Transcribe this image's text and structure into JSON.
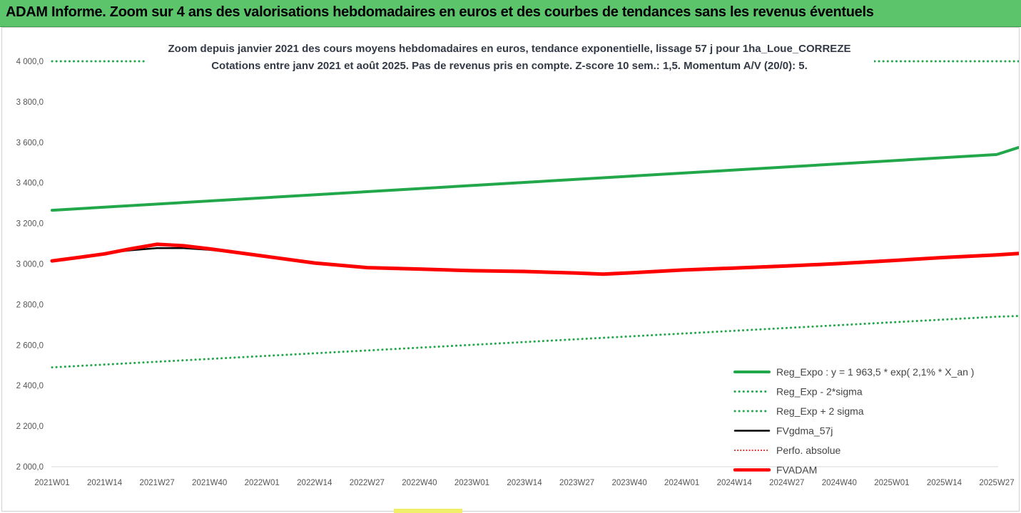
{
  "header": {
    "title": "ADAM Informe. Zoom sur 4 ans des valorisations hebdomadaires en euros et des courbes de tendances sans les revenus éventuels"
  },
  "chart_data": {
    "type": "line",
    "title_line1": "Zoom depuis janvier 2021 des cours moyens hebdomadaires en euros, tendance exponentielle, lissage 57 j pour 1ha_Loue_CORREZE",
    "title_line2": "Cotations entre janv 2021 et août 2025.  Pas de revenus pris en compte. Z-score 10 sem.: 1,5. Momentum A/V (20/0): 5.",
    "x_tick_labels": [
      "2021W01",
      "2021W14",
      "2021W27",
      "2021W40",
      "2022W01",
      "2022W14",
      "2022W27",
      "2022W40",
      "2023W01",
      "2023W14",
      "2023W27",
      "2023W40",
      "2024W01",
      "2024W14",
      "2024W27",
      "2024W40",
      "2025W01",
      "2025W14",
      "2025W27"
    ],
    "y_tick_labels": [
      "2 000,0",
      "2 200,0",
      "2 400,0",
      "2 600,0",
      "2 800,0",
      "3 000,0",
      "3 200,0",
      "3 400,0",
      "3 600,0",
      "3 800,0",
      "4 000,0"
    ],
    "ylim": [
      2000,
      4000
    ],
    "grid": false,
    "legend_position": "bottom-right",
    "series": [
      {
        "name": "Reg_Expo : y = 1 963,5 * exp( 2,1% *  X_an )",
        "color": "#22a84a",
        "style": "solid",
        "width": 4,
        "points": [
          [
            0,
            3265
          ],
          [
            18,
            3540
          ],
          [
            18.6,
            3590
          ]
        ]
      },
      {
        "name": "Reg_Exp - 2*sigma",
        "color": "#22a84a",
        "style": "dotted",
        "width": 3,
        "points": [
          [
            0,
            2490
          ],
          [
            18,
            2740
          ],
          [
            18.6,
            2745
          ]
        ]
      },
      {
        "name": "Reg_Exp + 2 sigma",
        "color": "#22a84a",
        "style": "dotted",
        "width": 3,
        "points": [
          [
            0,
            4000
          ],
          [
            18.6,
            4000
          ]
        ]
      },
      {
        "name": "FVgdma_57j",
        "color": "#000000",
        "style": "solid",
        "width": 2.5,
        "points": [
          [
            0,
            3015
          ],
          [
            1,
            3053
          ],
          [
            1.5,
            3068
          ],
          [
            2,
            3078
          ],
          [
            2.5,
            3078
          ],
          [
            3,
            3070
          ],
          [
            4,
            3040
          ],
          [
            5,
            3005
          ],
          [
            6,
            2982
          ],
          [
            7,
            2975
          ],
          [
            8,
            2967
          ],
          [
            9,
            2963
          ],
          [
            10,
            2955
          ],
          [
            10.5,
            2952
          ],
          [
            11,
            2958
          ],
          [
            12,
            2972
          ],
          [
            13,
            2982
          ],
          [
            14,
            2992
          ],
          [
            15,
            3005
          ],
          [
            16,
            3018
          ],
          [
            17,
            3032
          ],
          [
            18,
            3045
          ],
          [
            18.6,
            3052
          ]
        ]
      },
      {
        "name": "Perfo. absolue",
        "color": "#e01010",
        "style": "dotted",
        "width": 2,
        "points": []
      },
      {
        "name": "FVADAM",
        "color": "#ff0000",
        "style": "solid",
        "width": 5,
        "points": [
          [
            0,
            3015
          ],
          [
            0.5,
            3032
          ],
          [
            1,
            3050
          ],
          [
            1.5,
            3075
          ],
          [
            2,
            3097
          ],
          [
            2.5,
            3090
          ],
          [
            3,
            3075
          ],
          [
            4,
            3040
          ],
          [
            5,
            3005
          ],
          [
            6,
            2982
          ],
          [
            7,
            2975
          ],
          [
            8,
            2967
          ],
          [
            9,
            2963
          ],
          [
            10,
            2955
          ],
          [
            10.5,
            2950
          ],
          [
            11,
            2956
          ],
          [
            12,
            2970
          ],
          [
            13,
            2980
          ],
          [
            14,
            2990
          ],
          [
            15,
            3002
          ],
          [
            16,
            3017
          ],
          [
            17,
            3032
          ],
          [
            18,
            3045
          ],
          [
            18.6,
            3055
          ]
        ]
      }
    ]
  }
}
